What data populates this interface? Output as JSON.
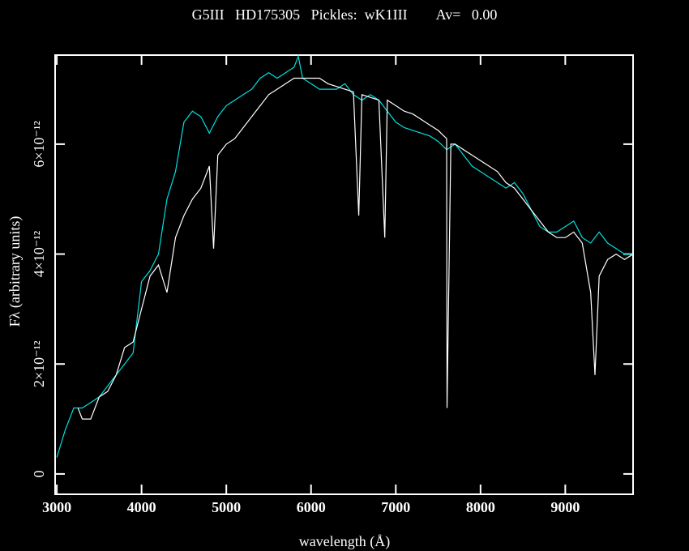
{
  "chart_data": {
    "type": "line",
    "title": "G5III   HD175305   Pickles:  wK1III        Av=   0.00",
    "x_label": "wavelength (Å)",
    "y_label": "Fλ (arbitrary units)",
    "xlim": [
      2980,
      9800
    ],
    "ylim": [
      -3.7e-13,
      7.62e-12
    ],
    "xticks": [
      3000,
      4000,
      5000,
      6000,
      7000,
      8000,
      9000
    ],
    "yticks": [
      0,
      {
        "value": 2e-12,
        "label": "2×10⁻¹²"
      },
      {
        "value": 4e-12,
        "label": "4×10⁻¹²"
      },
      {
        "value": 6e-12,
        "label": "6×10⁻¹²"
      }
    ],
    "series": [
      {
        "color": "#ffffff",
        "x": [
          3250,
          3300,
          3400,
          3500,
          3600,
          3700,
          3800,
          3900,
          4000,
          4100,
          4200,
          4300,
          4400,
          4500,
          4600,
          4700,
          4800,
          4850,
          4900,
          5000,
          5100,
          5200,
          5300,
          5400,
          5500,
          5600,
          5700,
          5800,
          5900,
          6000,
          6100,
          6200,
          6300,
          6400,
          6500,
          6563,
          6600,
          6700,
          6800,
          6870,
          6900,
          7000,
          7100,
          7200,
          7300,
          7400,
          7500,
          7600,
          7605,
          7650,
          7700,
          7800,
          7900,
          8000,
          8100,
          8200,
          8300,
          8400,
          8500,
          8600,
          8700,
          8800,
          8900,
          9000,
          9100,
          9200,
          9300,
          9350,
          9400,
          9500,
          9600,
          9700,
          9800
        ],
        "values": [
          1.2e-12,
          1e-12,
          1e-12,
          1.4e-12,
          1.5e-12,
          1.8e-12,
          2.3e-12,
          2.4e-12,
          3e-12,
          3.6e-12,
          3.8e-12,
          3.3e-12,
          4.3e-12,
          4.7e-12,
          5e-12,
          5.2e-12,
          5.6e-12,
          4.1e-12,
          5.8e-12,
          6e-12,
          6.1e-12,
          6.3e-12,
          6.5e-12,
          6.7e-12,
          6.9e-12,
          7e-12,
          7.1e-12,
          7.2e-12,
          7.2e-12,
          7.2e-12,
          7.2e-12,
          7.1e-12,
          7.05e-12,
          7e-12,
          6.95e-12,
          4.7e-12,
          6.9e-12,
          6.85e-12,
          6.8e-12,
          4.3e-12,
          6.8e-12,
          6.7e-12,
          6.6e-12,
          6.55e-12,
          6.45e-12,
          6.35e-12,
          6.25e-12,
          6.1e-12,
          1.2e-12,
          6e-12,
          6e-12,
          5.9e-12,
          5.8e-12,
          5.7e-12,
          5.6e-12,
          5.5e-12,
          5.3e-12,
          5.2e-12,
          5e-12,
          4.8e-12,
          4.6e-12,
          4.4e-12,
          4.3e-12,
          4.3e-12,
          4.4e-12,
          4.2e-12,
          3.3e-12,
          1.8e-12,
          3.6e-12,
          3.9e-12,
          4e-12,
          3.9e-12,
          4e-12
        ]
      },
      {
        "color": "#00e0e0",
        "x": [
          3000,
          3100,
          3200,
          3300,
          3400,
          3500,
          3600,
          3700,
          3800,
          3900,
          4000,
          4100,
          4200,
          4300,
          4400,
          4500,
          4600,
          4700,
          4800,
          4900,
          5000,
          5100,
          5200,
          5300,
          5400,
          5500,
          5600,
          5700,
          5800,
          5850,
          5900,
          6000,
          6100,
          6200,
          6300,
          6400,
          6500,
          6600,
          6700,
          6800,
          6900,
          7000,
          7100,
          7200,
          7300,
          7400,
          7500,
          7600,
          7700,
          7800,
          7900,
          8000,
          8100,
          8200,
          8300,
          8400,
          8500,
          8600,
          8700,
          8800,
          8900,
          9000,
          9100,
          9200,
          9300,
          9400,
          9500,
          9600,
          9700,
          9800
        ],
        "values": [
          3e-13,
          8e-13,
          1.2e-12,
          1.2e-12,
          1.3e-12,
          1.4e-12,
          1.6e-12,
          1.8e-12,
          2e-12,
          2.2e-12,
          3.5e-12,
          3.7e-12,
          4e-12,
          5e-12,
          5.5e-12,
          6.4e-12,
          6.6e-12,
          6.5e-12,
          6.2e-12,
          6.5e-12,
          6.7e-12,
          6.8e-12,
          6.9e-12,
          7e-12,
          7.2e-12,
          7.3e-12,
          7.2e-12,
          7.3e-12,
          7.4e-12,
          7.6e-12,
          7.2e-12,
          7.1e-12,
          7e-12,
          7e-12,
          7e-12,
          7.1e-12,
          6.9e-12,
          6.8e-12,
          6.9e-12,
          6.8e-12,
          6.6e-12,
          6.4e-12,
          6.3e-12,
          6.25e-12,
          6.2e-12,
          6.15e-12,
          6.05e-12,
          5.9e-12,
          6e-12,
          5.8e-12,
          5.6e-12,
          5.5e-12,
          5.4e-12,
          5.3e-12,
          5.2e-12,
          5.3e-12,
          5.1e-12,
          4.8e-12,
          4.5e-12,
          4.4e-12,
          4.4e-12,
          4.5e-12,
          4.6e-12,
          4.3e-12,
          4.2e-12,
          4.4e-12,
          4.2e-12,
          4.1e-12,
          4e-12,
          4e-12
        ]
      }
    ]
  }
}
